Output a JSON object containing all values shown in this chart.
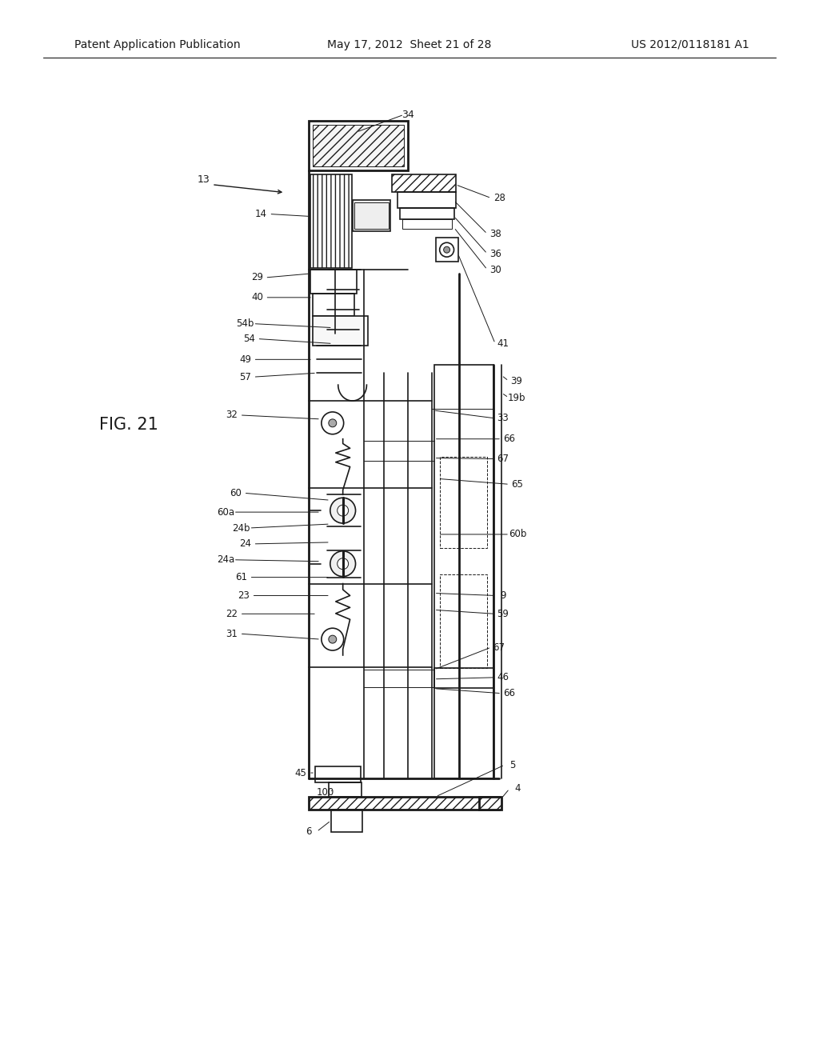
{
  "bg_color": "#ffffff",
  "line_color": "#1a1a1a",
  "header_left": "Patent Application Publication",
  "header_center": "May 17, 2012  Sheet 21 of 28",
  "header_right": "US 2012/0118181 A1",
  "fig_label": "FIG. 21"
}
